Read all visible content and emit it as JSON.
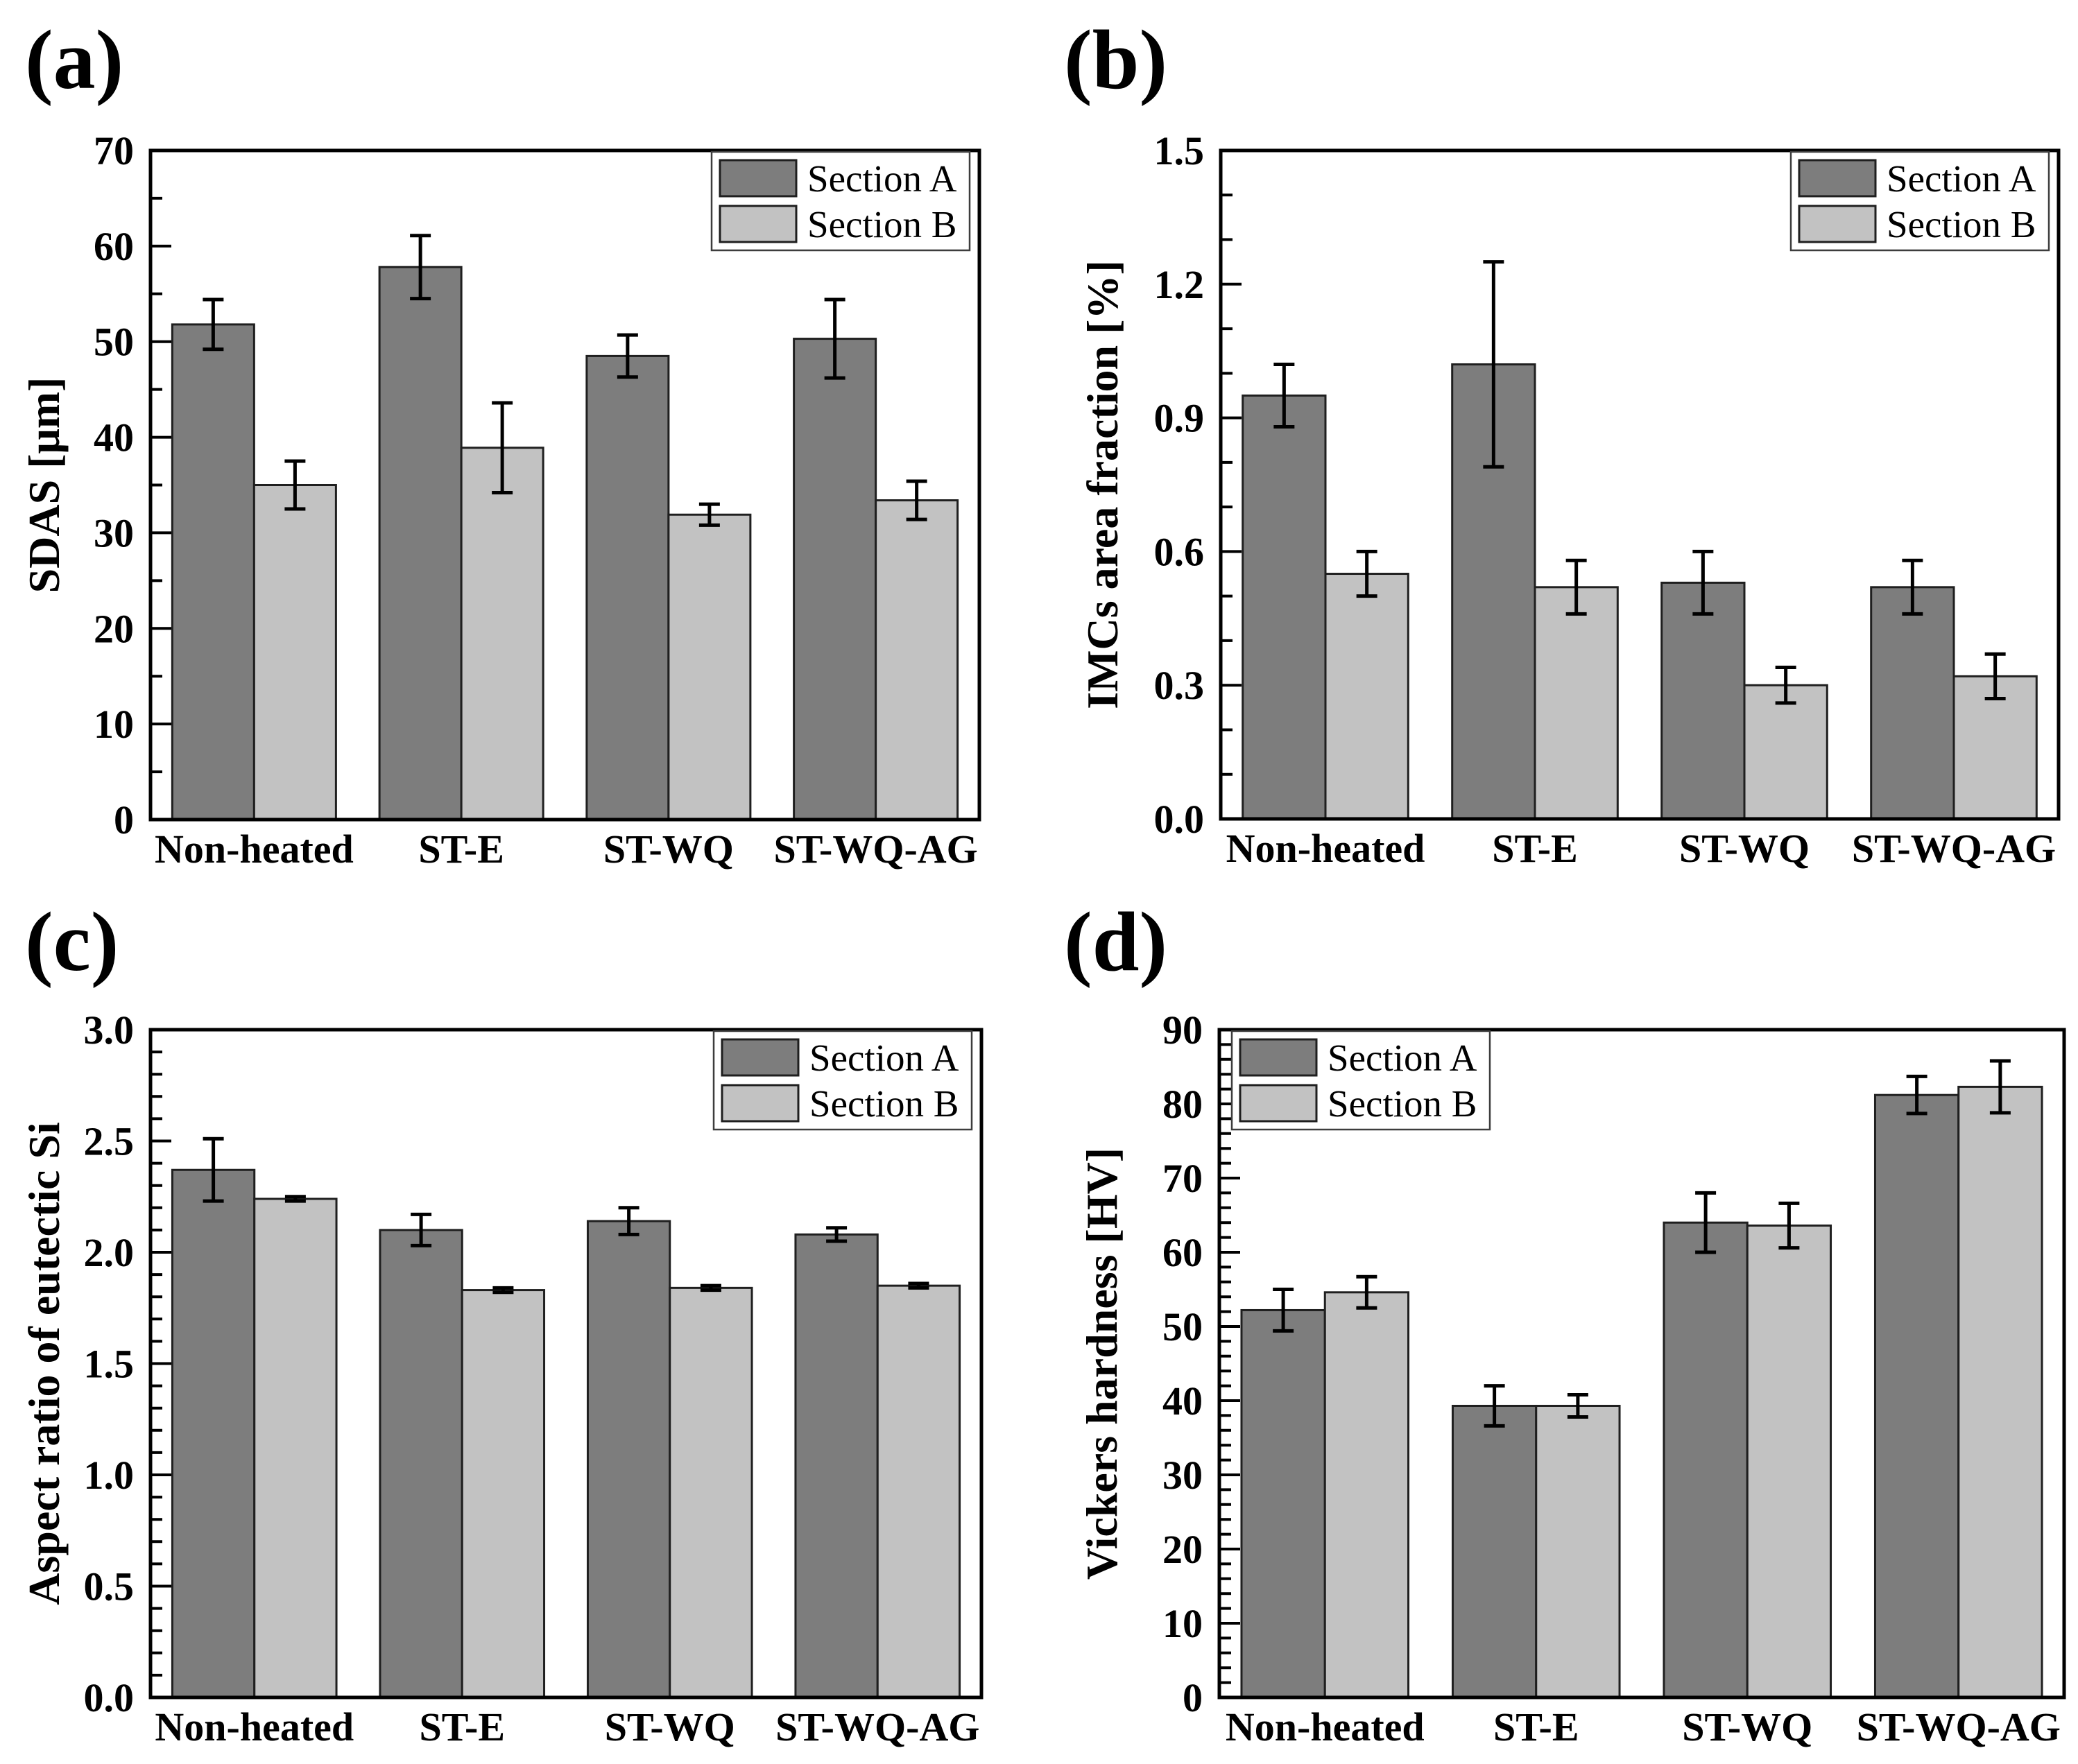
{
  "figure": {
    "background": "#ffffff",
    "colors": {
      "section_a": "#7d7d7d",
      "section_b": "#c2c2c2",
      "bar_edge": "#1f1f1f",
      "axis": "#000000",
      "text": "#000000",
      "error_bar": "#000000",
      "legend_border": "#3d3d3d",
      "legend_bg": "#ffffff"
    },
    "legend_items": [
      "Section A",
      "Section B"
    ]
  },
  "chart_data": [
    {
      "panel": "(a)",
      "type": "bar",
      "ylabel": "SDAS [μm]",
      "categories": [
        "Non-heated",
        "ST-E",
        "ST-WQ",
        "ST-WQ-AG"
      ],
      "series": [
        {
          "name": "Section A",
          "values": [
            51.8,
            57.8,
            48.5,
            50.3
          ],
          "errors": [
            2.6,
            3.3,
            2.2,
            4.1
          ]
        },
        {
          "name": "Section B",
          "values": [
            35.0,
            38.9,
            31.9,
            33.4
          ],
          "errors": [
            2.5,
            4.7,
            1.1,
            2.0
          ]
        }
      ],
      "ylim": [
        0,
        70
      ],
      "ytick_step": 10,
      "minor_ticks_per_interval": 1,
      "ytick_decimals": 0,
      "legend_position": "top-right",
      "grid": false
    },
    {
      "panel": "(b)",
      "type": "bar",
      "ylabel": "IMCs area fraction [%]",
      "categories": [
        "Non-heated",
        "ST-E",
        "ST-WQ",
        "ST-WQ-AG"
      ],
      "series": [
        {
          "name": "Section A",
          "values": [
            0.95,
            1.02,
            0.53,
            0.52
          ],
          "errors": [
            0.07,
            0.23,
            0.07,
            0.06
          ]
        },
        {
          "name": "Section B",
          "values": [
            0.55,
            0.52,
            0.3,
            0.32
          ],
          "errors": [
            0.05,
            0.06,
            0.04,
            0.05
          ]
        }
      ],
      "ylim": [
        0,
        1.5
      ],
      "ytick_step": 0.3,
      "minor_ticks_per_interval": 2,
      "ytick_decimals": 1,
      "legend_position": "top-right",
      "grid": false
    },
    {
      "panel": "(c)",
      "type": "bar",
      "ylabel": "Aspect ratio of eutectic Si",
      "categories": [
        "Non-heated",
        "ST-E",
        "ST-WQ",
        "ST-WQ-AG"
      ],
      "series": [
        {
          "name": "Section A",
          "values": [
            2.37,
            2.1,
            2.14,
            2.08
          ],
          "errors": [
            0.14,
            0.07,
            0.06,
            0.03
          ]
        },
        {
          "name": "Section B",
          "values": [
            2.24,
            1.83,
            1.84,
            1.85
          ],
          "errors": [
            0.01,
            0.01,
            0.01,
            0.01
          ]
        }
      ],
      "ylim": [
        0,
        3.0
      ],
      "ytick_step": 0.5,
      "minor_ticks_per_interval": 4,
      "ytick_decimals": 1,
      "legend_position": "top-right",
      "grid": false
    },
    {
      "panel": "(d)",
      "type": "bar",
      "ylabel": "Vickers hardness [HV]",
      "categories": [
        "Non-heated",
        "ST-E",
        "ST-WQ",
        "ST-WQ-AG"
      ],
      "series": [
        {
          "name": "Section A",
          "values": [
            52.2,
            39.3,
            64.0,
            81.2
          ],
          "errors": [
            2.8,
            2.7,
            4.0,
            2.5
          ]
        },
        {
          "name": "Section B",
          "values": [
            54.6,
            39.3,
            63.6,
            82.3
          ],
          "errors": [
            2.1,
            1.5,
            3.0,
            3.5
          ]
        }
      ],
      "ylim": [
        0,
        90
      ],
      "ytick_step": 10,
      "minor_ticks_per_interval": 4,
      "ytick_decimals": 0,
      "legend_position": "top-left",
      "grid": false
    }
  ]
}
